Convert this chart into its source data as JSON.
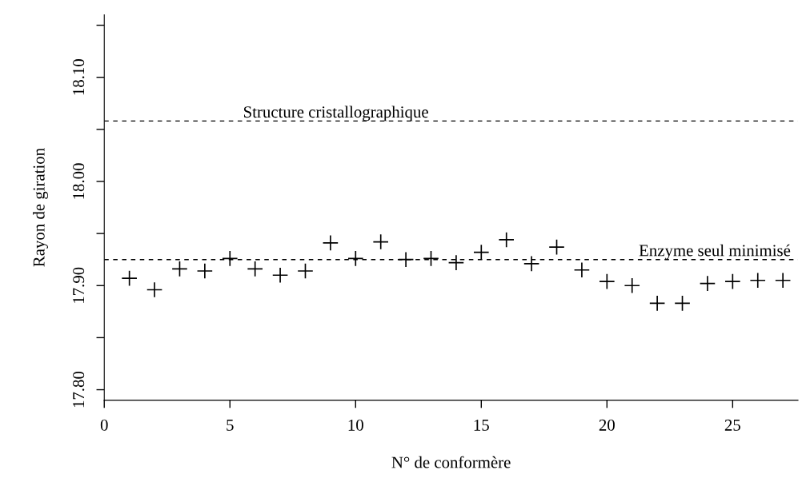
{
  "chart_data": {
    "type": "scatter",
    "xlabel": "N° de conformère",
    "ylabel": "Rayon de giration",
    "x": [
      1,
      2,
      3,
      4,
      5,
      6,
      7,
      8,
      9,
      10,
      11,
      12,
      13,
      14,
      15,
      16,
      17,
      18,
      19,
      20,
      21,
      22,
      23,
      24,
      25,
      26,
      27
    ],
    "series": [
      {
        "color": "#000000",
        "values": [
          17.907,
          17.896,
          17.916,
          17.914,
          17.926,
          17.916,
          17.91,
          17.914,
          17.941,
          17.926,
          17.942,
          17.925,
          17.926,
          17.922,
          17.932,
          17.944,
          17.921,
          17.937,
          17.915,
          17.904,
          17.9,
          17.883,
          17.883,
          17.902,
          17.904,
          17.905,
          17.905
        ]
      }
    ],
    "marker": "cross",
    "grid": false,
    "legend": false,
    "xlim": [
      0,
      27.6
    ],
    "xticks": [
      0,
      5,
      10,
      15,
      20,
      25
    ],
    "ylim": [
      17.79,
      18.16
    ],
    "yticks": [
      {
        "value": 17.8,
        "label": "17.80"
      },
      {
        "value": 17.85,
        "label": null
      },
      {
        "value": 17.9,
        "label": "17.90"
      },
      {
        "value": 17.95,
        "label": null
      },
      {
        "value": 18.0,
        "label": "18.00"
      },
      {
        "value": 18.05,
        "label": null
      },
      {
        "value": 18.1,
        "label": "18.10"
      },
      {
        "value": 18.15,
        "label": null
      }
    ],
    "ref_lines": [
      {
        "axis": "y",
        "value": 18.058,
        "label": "Structure cristallographique",
        "color": "#000000",
        "line_style": "dashed"
      },
      {
        "axis": "y",
        "value": 17.925,
        "label": "Enzyme seul minimisé",
        "color": "#000000",
        "line_style": "dashed"
      }
    ]
  }
}
